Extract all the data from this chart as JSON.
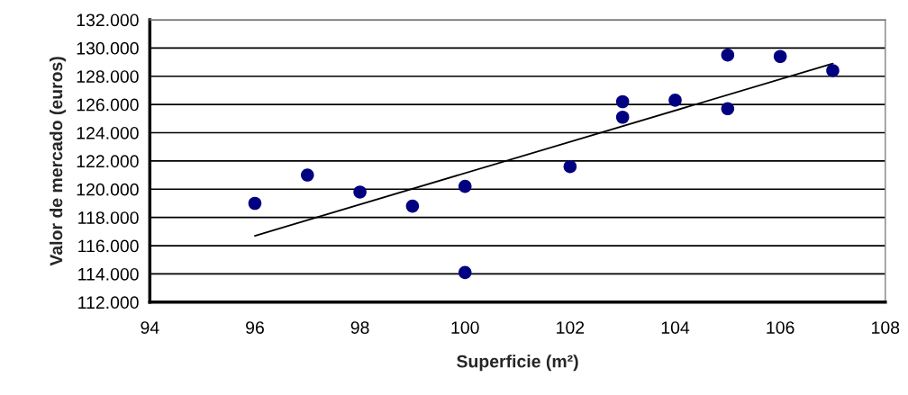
{
  "chart_data": {
    "type": "scatter",
    "xlabel": "Superficie (m²)",
    "ylabel": "Valor de mercado (euros)",
    "series": [
      {
        "color": "#000080",
        "marker": "circle",
        "x": [
          96,
          97,
          98,
          99,
          100,
          100,
          102,
          103,
          103,
          104,
          105,
          105,
          106,
          107
        ],
        "values": [
          119000,
          121000,
          119800,
          118800,
          120200,
          114100,
          121600,
          126200,
          125100,
          126300,
          129500,
          125700,
          129400,
          128400
        ]
      },
      {
        "type": "line",
        "color": "#000000",
        "marker": "none",
        "line_style": "solid",
        "x": [
          96,
          107
        ],
        "values": [
          116700,
          128900
        ]
      }
    ],
    "xlim": [
      94,
      108
    ],
    "xticks": [
      94,
      96,
      98,
      100,
      102,
      104,
      106,
      108
    ],
    "ylim": [
      112000,
      132000
    ],
    "yticks": [
      {
        "value": 112000,
        "label": "112.000"
      },
      {
        "value": 114000,
        "label": "114.000"
      },
      {
        "value": 116000,
        "label": "116.000"
      },
      {
        "value": 118000,
        "label": "118.000"
      },
      {
        "value": 120000,
        "label": "120.000"
      },
      {
        "value": 122000,
        "label": "122.000"
      },
      {
        "value": 124000,
        "label": "124.000"
      },
      {
        "value": 126000,
        "label": "126.000"
      },
      {
        "value": 128000,
        "label": "128.000"
      },
      {
        "value": 130000,
        "label": "130.000"
      },
      {
        "value": 132000,
        "label": "132.000"
      }
    ],
    "grid": "y",
    "legend": false
  }
}
